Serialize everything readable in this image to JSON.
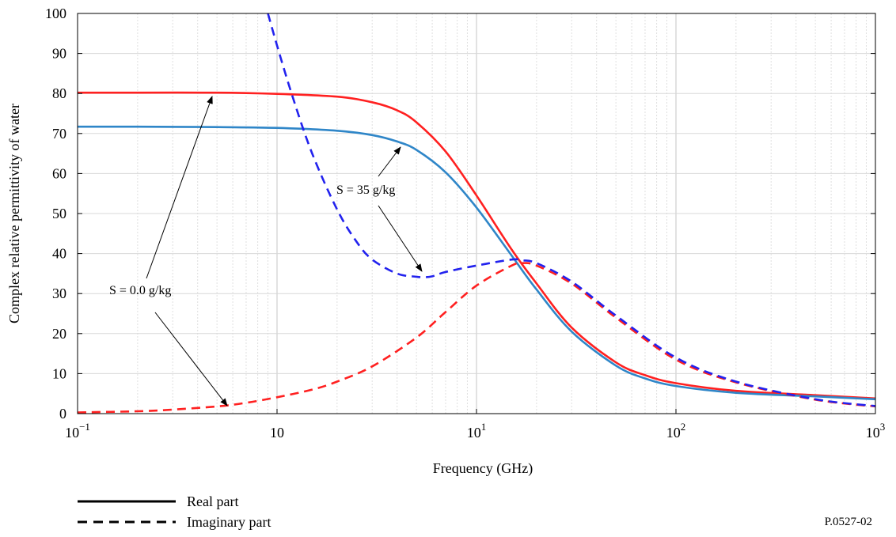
{
  "chart_data": {
    "type": "line",
    "title": "",
    "xlabel": "Frequency (GHz)",
    "ylabel": "Complex relative permittivity of water",
    "xscale": "log",
    "xlim": [
      0.1,
      1000
    ],
    "ylim": [
      0,
      100
    ],
    "grid": true,
    "xticks": [
      {
        "value": 0.1,
        "base": "10",
        "exp": "−1"
      },
      {
        "value": 1,
        "base": "10",
        "exp": ""
      },
      {
        "value": 10,
        "base": "10",
        "exp": "1"
      },
      {
        "value": 100,
        "base": "10",
        "exp": "2"
      },
      {
        "value": 1000,
        "base": "10",
        "exp": "3"
      }
    ],
    "yticks": [
      "0",
      "10",
      "20",
      "30",
      "40",
      "50",
      "60",
      "70",
      "80",
      "90",
      "100"
    ],
    "series": [
      {
        "color": "#ff2020",
        "style": "solid",
        "x": [
          0.1,
          0.2,
          0.5,
          1,
          2,
          3,
          4,
          5,
          7,
          10,
          15,
          20,
          30,
          50,
          70,
          100,
          200,
          500,
          1000
        ],
        "y": [
          80.2,
          80.2,
          80.2,
          79.9,
          79.2,
          77.8,
          75.8,
          72.8,
          65.5,
          54.5,
          41,
          32.5,
          21.5,
          12.8,
          9.6,
          7.6,
          5.7,
          4.6,
          3.8
        ]
      },
      {
        "color": "#2f86c8",
        "style": "solid",
        "x": [
          0.1,
          0.2,
          0.5,
          1,
          2,
          3,
          4,
          5,
          7,
          10,
          15,
          20,
          30,
          50,
          70,
          100,
          200,
          500,
          1000
        ],
        "y": [
          71.7,
          71.7,
          71.6,
          71.4,
          70.7,
          69.6,
          68,
          65.9,
          60.3,
          51.5,
          39.5,
          31,
          20.5,
          12,
          8.8,
          6.9,
          5.2,
          4.3,
          3.6
        ]
      },
      {
        "color": "#ff2020",
        "style": "dashed",
        "x": [
          0.1,
          0.2,
          0.3,
          0.5,
          0.7,
          1,
          1.5,
          2,
          3,
          5,
          7,
          10,
          15,
          17,
          20,
          30,
          50,
          100,
          200,
          500,
          1000
        ],
        "y": [
          0.3,
          0.6,
          1,
          1.8,
          2.7,
          4.1,
          6,
          8,
          11.8,
          19,
          25.4,
          32,
          37,
          37.6,
          37,
          32.5,
          24,
          13.5,
          7.8,
          3.5,
          1.8
        ]
      },
      {
        "color": "#2222ee",
        "style": "dashed",
        "x": [
          0.9,
          1,
          1.2,
          1.5,
          2,
          2.5,
          3,
          4,
          5,
          5.5,
          6,
          7,
          10,
          15,
          17,
          20,
          30,
          50,
          100,
          200,
          500,
          1000
        ],
        "y": [
          100,
          92,
          79,
          65,
          51,
          43,
          38.5,
          35,
          34.2,
          34.1,
          34.3,
          35.4,
          37,
          38.5,
          38.3,
          37.6,
          33,
          24.5,
          14,
          8,
          3.6,
          1.9
        ]
      }
    ],
    "annotations": [
      {
        "text": "S = 35 g/kg"
      },
      {
        "text": "S = 0.0 g/kg"
      }
    ]
  },
  "legend": [
    {
      "label": "Real part",
      "style": "solid"
    },
    {
      "label": "Imaginary part",
      "style": "dashed"
    }
  ],
  "reference": "P.0527-02"
}
